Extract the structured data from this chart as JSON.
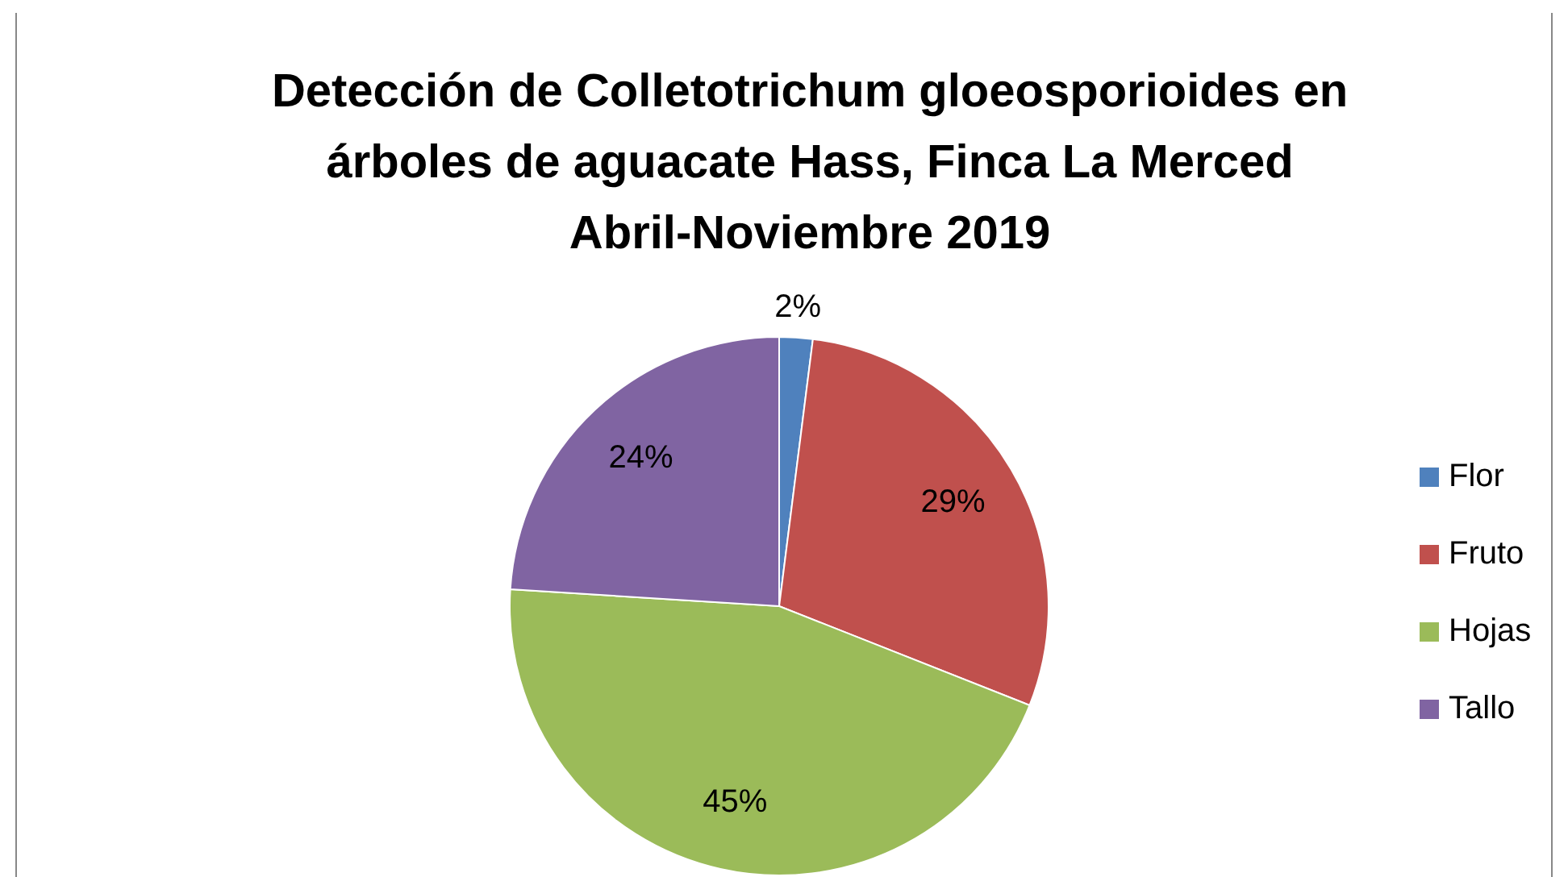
{
  "chart_data": {
    "type": "pie",
    "title": "Detección de Colletotrichum gloeosporioides en árboles de aguacate Hass, Finca La Merced Abril-Noviembre 2019",
    "categories": [
      "Flor",
      "Fruto",
      "Hojas",
      "Tallo"
    ],
    "values": [
      2,
      29,
      45,
      24
    ],
    "colors": [
      "#4f81bd",
      "#c0504d",
      "#9bbb59",
      "#8064a2"
    ],
    "value_labels": [
      "2%",
      "29%",
      "45%",
      "24%"
    ],
    "legend": "right"
  }
}
